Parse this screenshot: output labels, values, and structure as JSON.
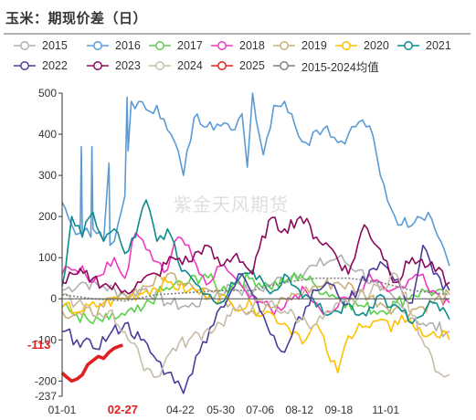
{
  "title": "玉米：期现价差（日）",
  "watermark": "紫金天风期货",
  "legend": [
    {
      "name": "2015",
      "color": "#b0b0b0",
      "icon": "circle-line-icon"
    },
    {
      "name": "2016",
      "color": "#5b9bd5",
      "icon": "circle-line-icon"
    },
    {
      "name": "2017",
      "color": "#5ad14a",
      "icon": "circle-line-icon"
    },
    {
      "name": "2018",
      "color": "#f038c0",
      "icon": "circle-line-icon"
    },
    {
      "name": "2019",
      "color": "#c8b078",
      "icon": "circle-line-icon"
    },
    {
      "name": "2020",
      "color": "#ffc000",
      "icon": "circle-line-icon"
    },
    {
      "name": "2021",
      "color": "#0e8a8a",
      "icon": "circle-line-icon"
    },
    {
      "name": "2022",
      "color": "#4b3c9e",
      "icon": "circle-line-icon"
    },
    {
      "name": "2023",
      "color": "#8b0a5a",
      "icon": "circle-line-icon"
    },
    {
      "name": "2024",
      "color": "#c8bca8",
      "icon": "circle-line-icon"
    },
    {
      "name": "2025",
      "color": "#e02020",
      "icon": "circle-line-icon"
    },
    {
      "name": "2015-2024均值",
      "color": "#808080",
      "icon": "circle-line-icon"
    }
  ],
  "chart_data": {
    "type": "line",
    "title": "玉米：期现价差（日）",
    "xlabel": "",
    "ylabel": "",
    "ylim": [
      -237,
      500
    ],
    "yticks": [
      -237,
      -200,
      -100,
      0,
      100,
      200,
      300,
      400,
      500
    ],
    "x_tick_labels": [
      "01-01",
      "02-27",
      "04-22",
      "05-30",
      "07-06",
      "08-12",
      "09-18",
      "11-01"
    ],
    "x_tick_days": [
      1,
      58,
      112,
      150,
      187,
      224,
      261,
      305
    ],
    "x_range_days": [
      1,
      365
    ],
    "highlight_x_label": "02-27",
    "highlight_y_label": "-113",
    "grid": false,
    "legend_position": "top",
    "series": [
      {
        "name": "2015",
        "x": [
          1,
          20,
          40,
          60,
          80,
          100,
          120,
          140,
          160,
          180,
          200,
          220,
          240,
          260,
          280,
          300,
          320,
          340,
          365
        ],
        "values": [
          20,
          40,
          30,
          10,
          25,
          -10,
          -20,
          5,
          30,
          15,
          40,
          60,
          80,
          100,
          70,
          20,
          -20,
          -60,
          -80
        ]
      },
      {
        "name": "2016",
        "x": [
          1,
          10,
          18,
          19,
          20,
          28,
          29,
          30,
          40,
          45,
          46,
          50,
          60,
          62,
          63,
          66,
          80,
          90,
          100,
          110,
          115,
          125,
          140,
          150,
          160,
          170,
          175,
          180,
          190,
          200,
          210,
          220,
          230,
          240,
          250,
          260,
          270,
          280,
          290,
          300,
          310,
          320,
          335,
          345,
          360,
          365
        ],
        "values": [
          235,
          180,
          160,
          370,
          160,
          150,
          370,
          170,
          140,
          330,
          130,
          140,
          250,
          490,
          360,
          480,
          460,
          470,
          410,
          360,
          300,
          440,
          430,
          420,
          410,
          450,
          320,
          500,
          350,
          470,
          480,
          420,
          380,
          410,
          420,
          380,
          400,
          430,
          420,
          300,
          220,
          180,
          200,
          210,
          120,
          80
        ]
      },
      {
        "name": "2017",
        "x": [
          1,
          15,
          30,
          45,
          60,
          75,
          90,
          105,
          120,
          135,
          150,
          165,
          180,
          195,
          210,
          225,
          240,
          255,
          270,
          285,
          300,
          315,
          330,
          345,
          365
        ],
        "values": [
          -20,
          -40,
          -60,
          -50,
          -40,
          -30,
          10,
          30,
          40,
          60,
          20,
          40,
          50,
          30,
          40,
          60,
          30,
          10,
          -10,
          -20,
          -30,
          -10,
          10,
          20,
          0
        ]
      },
      {
        "name": "2018",
        "x": [
          1,
          10,
          20,
          30,
          40,
          50,
          60,
          70,
          80,
          90,
          100,
          110,
          120,
          130,
          140,
          150,
          160,
          170,
          180,
          190,
          200,
          210,
          220,
          230,
          240,
          250,
          260,
          270,
          280,
          290,
          300,
          310,
          320,
          330,
          340,
          350,
          365
        ],
        "values": [
          60,
          70,
          80,
          40,
          60,
          100,
          50,
          160,
          120,
          90,
          70,
          150,
          130,
          60,
          40,
          80,
          60,
          30,
          10,
          -10,
          -40,
          -20,
          10,
          20,
          -10,
          -30,
          -20,
          0,
          20,
          60,
          40,
          20,
          30,
          50,
          60,
          20,
          -10
        ]
      },
      {
        "name": "2019",
        "x": [
          1,
          20,
          40,
          60,
          80,
          100,
          120,
          140,
          160,
          180,
          200,
          220,
          240,
          260,
          280,
          300,
          320,
          340,
          365
        ],
        "values": [
          -30,
          -40,
          -20,
          10,
          30,
          60,
          40,
          20,
          -10,
          -30,
          -20,
          10,
          30,
          40,
          20,
          -10,
          -30,
          -20,
          10
        ]
      },
      {
        "name": "2020",
        "x": [
          1,
          20,
          40,
          60,
          80,
          100,
          120,
          140,
          160,
          180,
          200,
          210,
          220,
          230,
          240,
          250,
          260,
          270,
          280,
          290,
          300,
          310,
          320,
          330,
          340,
          350,
          365
        ],
        "values": [
          -20,
          -30,
          -10,
          0,
          20,
          40,
          20,
          10,
          -10,
          -20,
          -40,
          -60,
          -80,
          -100,
          -60,
          -130,
          -180,
          -90,
          -60,
          -70,
          -50,
          -80,
          -40,
          -60,
          -90,
          -80,
          -100
        ]
      },
      {
        "name": "2021",
        "x": [
          1,
          10,
          20,
          30,
          40,
          50,
          60,
          70,
          80,
          90,
          100,
          110,
          120,
          130,
          140,
          150,
          160,
          170,
          180,
          190,
          200,
          210,
          220,
          230,
          240,
          250,
          260,
          270,
          280,
          290,
          300,
          310,
          320,
          330,
          340,
          350,
          365
        ],
        "values": [
          30,
          200,
          150,
          210,
          140,
          170,
          110,
          150,
          240,
          140,
          170,
          90,
          60,
          30,
          10,
          -10,
          40,
          60,
          70,
          40,
          20,
          60,
          30,
          10,
          -20,
          -40,
          -30,
          -10,
          -40,
          -20,
          10,
          -20,
          -30,
          -60,
          -40,
          -10,
          -50
        ]
      },
      {
        "name": "2022",
        "x": [
          1,
          15,
          30,
          45,
          60,
          75,
          90,
          100,
          110,
          115,
          120,
          130,
          140,
          150,
          160,
          170,
          180,
          190,
          200,
          210,
          220,
          230,
          240,
          250,
          260,
          270,
          280,
          290,
          300,
          310,
          320,
          330,
          340,
          350,
          365
        ],
        "values": [
          -80,
          -100,
          -120,
          -90,
          -60,
          -100,
          -150,
          -180,
          -200,
          -230,
          -190,
          -130,
          -70,
          -20,
          20,
          60,
          10,
          -40,
          -90,
          -130,
          -60,
          -20,
          20,
          40,
          10,
          -10,
          30,
          70,
          90,
          60,
          20,
          -10,
          130,
          60,
          20
        ]
      },
      {
        "name": "2023",
        "x": [
          1,
          15,
          30,
          45,
          60,
          75,
          90,
          105,
          120,
          135,
          150,
          165,
          180,
          195,
          210,
          225,
          240,
          255,
          270,
          285,
          300,
          315,
          330,
          345,
          365
        ],
        "values": [
          40,
          60,
          50,
          30,
          20,
          40,
          60,
          100,
          90,
          130,
          80,
          110,
          60,
          190,
          170,
          200,
          150,
          120,
          60,
          180,
          120,
          40,
          100,
          80,
          40
        ]
      },
      {
        "name": "2024",
        "x": [
          1,
          15,
          30,
          45,
          60,
          75,
          90,
          105,
          120,
          135,
          150,
          165,
          180,
          195,
          210,
          225,
          240,
          255,
          270,
          285,
          300,
          315,
          330,
          345,
          355,
          360,
          365
        ],
        "values": [
          10,
          -10,
          -40,
          -30,
          -80,
          -150,
          -190,
          -120,
          -100,
          -80,
          -60,
          -30,
          -20,
          -10,
          -30,
          -50,
          -60,
          -30,
          -10,
          10,
          30,
          60,
          -40,
          -120,
          -180,
          -190,
          -185
        ]
      },
      {
        "name": "2025",
        "x": [
          1,
          5,
          10,
          15,
          20,
          25,
          30,
          35,
          40,
          45,
          50,
          55,
          58
        ],
        "values": [
          -180,
          -190,
          -200,
          -195,
          -185,
          -160,
          -150,
          -140,
          -145,
          -130,
          -120,
          -115,
          -113
        ]
      },
      {
        "name": "2015-2024均值",
        "x": [
          1,
          30,
          60,
          90,
          120,
          150,
          180,
          210,
          240,
          270,
          300,
          330,
          365
        ],
        "values": [
          10,
          0,
          -5,
          10,
          15,
          20,
          20,
          40,
          50,
          50,
          40,
          20,
          10
        ]
      }
    ]
  }
}
